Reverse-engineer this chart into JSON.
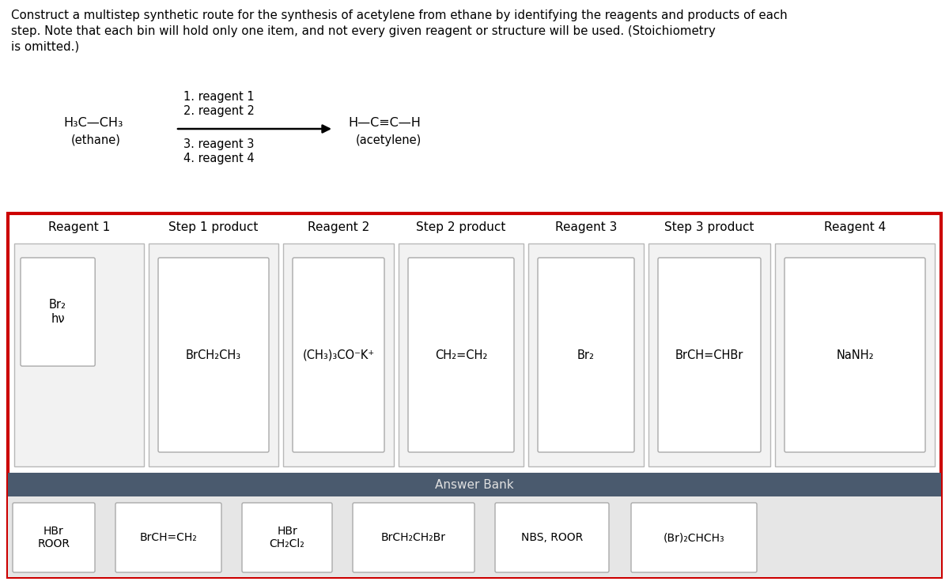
{
  "title_line1": "Construct a multistep synthetic route for the synthesis of acetylene from ethane by identifying the reagents and products of each",
  "title_line2": "step. Note that each bin will hold only one item, and not every given reagent or structure will be used. (Stoichiometry",
  "title_line3": "is omitted.)",
  "ethane_top": "H₃C—CH₃",
  "ethane_bottom": "(ethane)",
  "acetylene_top": "H—C≡C—H",
  "acetylene_bottom": "(acetylene)",
  "reagent_lines": [
    "1. reagent 1",
    "2. reagent 2",
    "3. reagent 3",
    "4. reagent 4"
  ],
  "column_headers": [
    "Reagent 1",
    "Step 1 product",
    "Reagent 2",
    "Step 2 product",
    "Reagent 3",
    "Step 3 product",
    "Reagent 4"
  ],
  "column_contents": [
    "Br₂\nhν",
    "BrCH₂CH₃",
    "(CH₃)₃CO⁻K⁺",
    "CH₂=CH₂",
    "Br₂",
    "BrCH=CHBr",
    "NaNH₂"
  ],
  "answer_bank_label": "Answer Bank",
  "answer_bank_items": [
    "HBr\nROOR",
    "BrCH=CH₂",
    "HBr\nCH₂Cl₂",
    "BrCH₂CH₂Br",
    "NBS, ROOR",
    "(Br)₂CHCH₃"
  ],
  "red_border_color": "#cc0000",
  "answer_bank_header_color": "#4a5a6e",
  "answer_bank_bg_color": "#e6e6e6",
  "col_outer_bg": "#f2f2f2",
  "col_outer_edge": "#b8b8b8",
  "inner_box_bg": "#ffffff",
  "inner_box_edge": "#aaaaaa",
  "ab_item_edge": "#aaaaaa",
  "ab_item_bg": "#ffffff",
  "text_color": "#000000",
  "answer_bank_text_color": "#e0e0e0",
  "bg_color": "#ffffff",
  "title_fontsize": 10.8,
  "header_fontsize": 11.0,
  "content_fontsize": 10.5,
  "ab_fontsize": 10.0,
  "scheme_fontsize": 11.5
}
